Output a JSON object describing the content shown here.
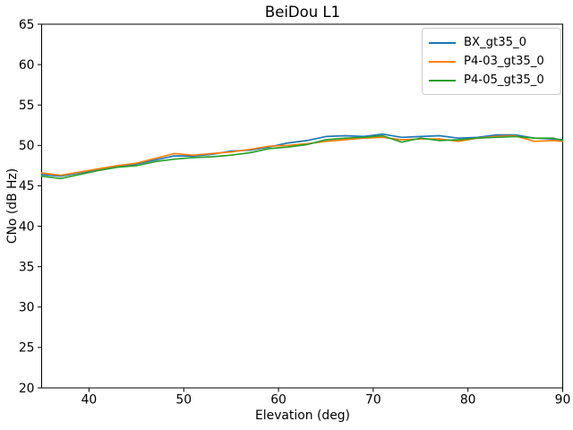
{
  "chart_data": {
    "type": "line",
    "title": "BeiDou L1",
    "xlabel": "Elevation (deg)",
    "ylabel": "CNo (dB Hz)",
    "xlim": [
      35,
      90
    ],
    "ylim": [
      20,
      65
    ],
    "xticks": [
      40,
      50,
      60,
      70,
      80,
      90
    ],
    "yticks": [
      20,
      25,
      30,
      35,
      40,
      45,
      50,
      55,
      60,
      65
    ],
    "grid": false,
    "legend_position": "upper right",
    "x": [
      35,
      37,
      39,
      41,
      43,
      45,
      47,
      49,
      51,
      53,
      55,
      57,
      59,
      61,
      63,
      65,
      67,
      69,
      71,
      73,
      75,
      77,
      79,
      81,
      83,
      85,
      87,
      89,
      90
    ],
    "series": [
      {
        "name": "BX_gt35_0",
        "color": "#1f77b4",
        "values": [
          46.4,
          46.2,
          46.6,
          47.0,
          47.4,
          47.7,
          48.2,
          48.7,
          48.7,
          48.9,
          49.3,
          49.4,
          49.8,
          50.3,
          50.6,
          51.1,
          51.2,
          51.1,
          51.4,
          51.0,
          51.1,
          51.2,
          50.9,
          51.0,
          51.3,
          51.3,
          50.9,
          50.8,
          50.7
        ]
      },
      {
        "name": "P4-03_gt35_0",
        "color": "#ff7f0e",
        "values": [
          46.6,
          46.3,
          46.7,
          47.1,
          47.5,
          47.8,
          48.4,
          49.0,
          48.8,
          49.0,
          49.2,
          49.5,
          49.9,
          50.0,
          50.2,
          50.5,
          50.7,
          50.9,
          51.0,
          50.7,
          50.8,
          50.8,
          50.5,
          50.9,
          51.1,
          51.2,
          50.5,
          50.6,
          50.5
        ]
      },
      {
        "name": "P4-05_gt35_0",
        "color": "#2ca02c",
        "values": [
          46.2,
          45.9,
          46.4,
          46.9,
          47.3,
          47.5,
          48.0,
          48.3,
          48.5,
          48.6,
          48.8,
          49.1,
          49.6,
          49.8,
          50.1,
          50.7,
          50.9,
          51.0,
          51.2,
          50.4,
          50.9,
          50.6,
          50.7,
          50.9,
          51.0,
          51.1,
          50.9,
          50.9,
          50.6
        ]
      }
    ]
  }
}
